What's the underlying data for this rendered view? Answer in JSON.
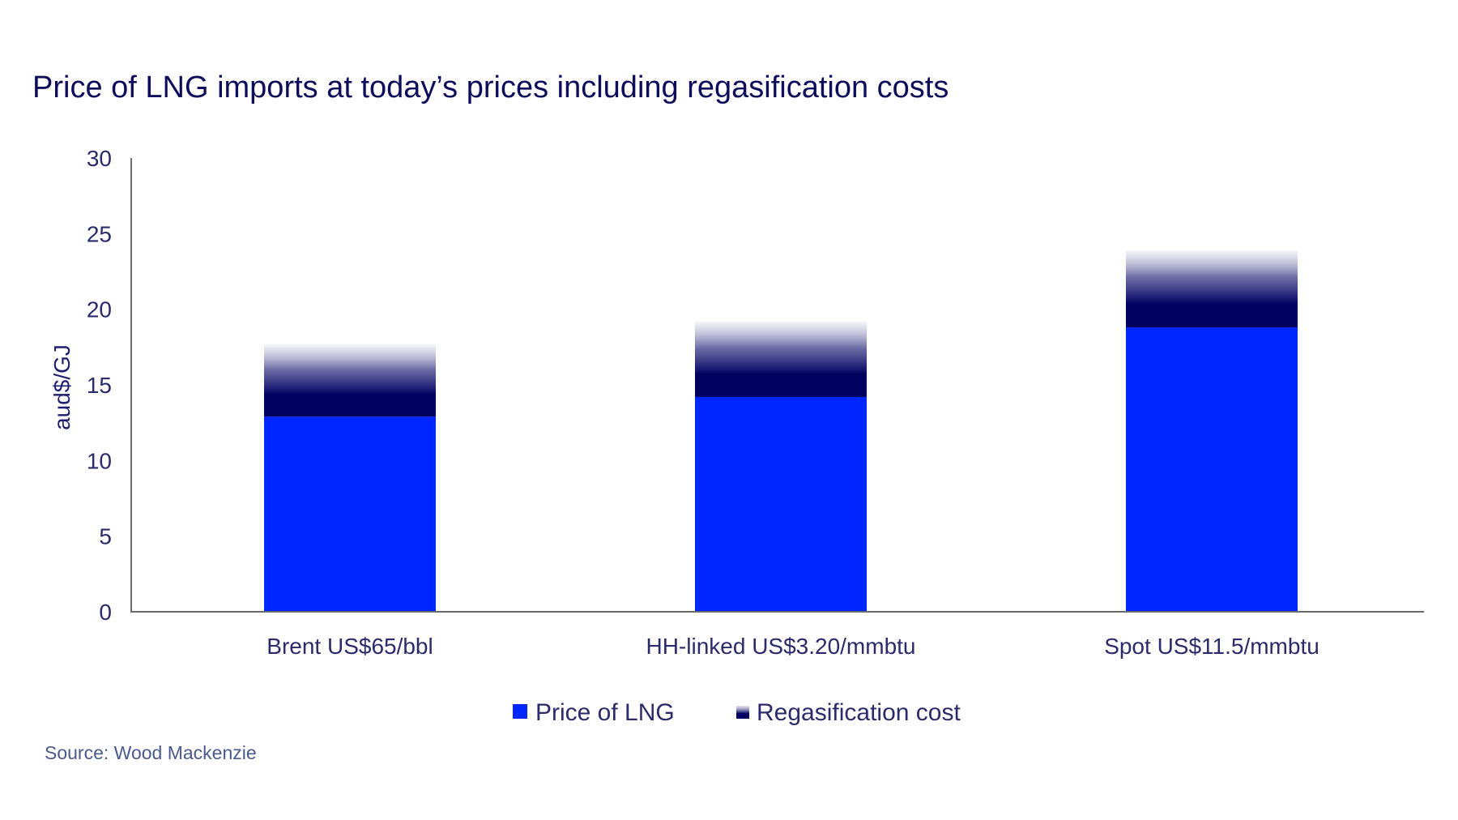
{
  "chart_data": {
    "type": "bar",
    "stacked": true,
    "title": "Price of LNG imports at today’s prices including regasification costs",
    "xlabel": "",
    "ylabel": "aud$/GJ",
    "ylim": [
      0,
      30
    ],
    "yticks": [
      0,
      5,
      10,
      15,
      20,
      25,
      30
    ],
    "grid": false,
    "categories": [
      "Brent US$65/bbl",
      "HH-linked US$3.20/mmbtu",
      "Spot US$11.5/mmbtu"
    ],
    "series": [
      {
        "name": "Price of LNG",
        "values": [
          12.9,
          14.2,
          18.8
        ],
        "color": "#0026ff",
        "style": "solid"
      },
      {
        "name": "Regasification cost",
        "values": [
          4.8,
          5.0,
          5.1
        ],
        "color": "#000060",
        "style": "gradient-fade-to-top"
      }
    ],
    "legend_position": "bottom-center",
    "source": "Source: Wood Mackenzie"
  }
}
